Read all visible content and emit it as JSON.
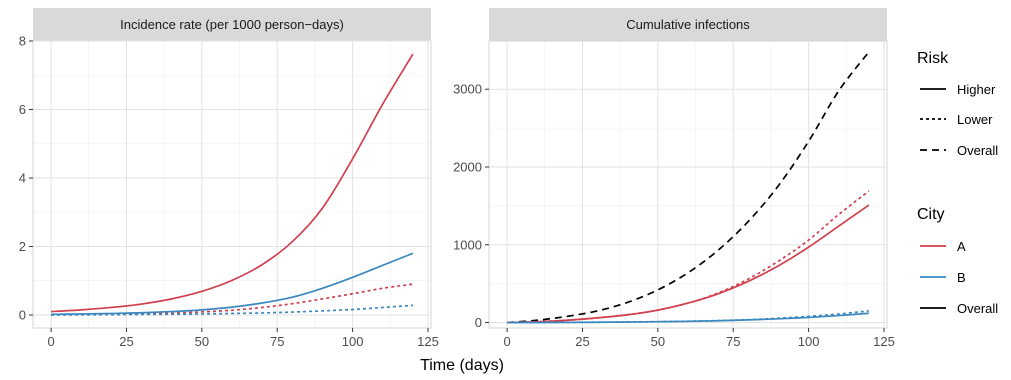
{
  "xlabel": "Time (days)",
  "colors": {
    "A": "#d1404f",
    "B": "#3a88bf",
    "Overall": "#000000"
  },
  "chart_data": [
    {
      "type": "line",
      "title": "Incidence rate (per 1000 person−days)",
      "xlim": [
        -6,
        126
      ],
      "ylim": [
        -0.38,
        8.0
      ],
      "xticks": [
        0,
        25,
        50,
        75,
        100,
        125
      ],
      "yticks": [
        0,
        2,
        4,
        6,
        8
      ],
      "x": [
        0,
        10,
        20,
        30,
        40,
        50,
        60,
        70,
        80,
        90,
        100,
        110,
        120
      ],
      "series": [
        {
          "name": "A – Higher",
          "city": "A",
          "risk": "Higher",
          "values": [
            0.1,
            0.15,
            0.22,
            0.32,
            0.47,
            0.69,
            1.01,
            1.47,
            2.14,
            3.12,
            4.56,
            6.16,
            7.62
          ]
        },
        {
          "name": "A – Lower",
          "city": "A",
          "risk": "Lower",
          "values": [
            0.01,
            0.015,
            0.02,
            0.035,
            0.055,
            0.09,
            0.14,
            0.22,
            0.33,
            0.47,
            0.62,
            0.78,
            0.9
          ]
        },
        {
          "name": "B – Higher",
          "city": "B",
          "risk": "Higher",
          "values": [
            0.02,
            0.03,
            0.045,
            0.065,
            0.1,
            0.15,
            0.23,
            0.35,
            0.52,
            0.78,
            1.1,
            1.45,
            1.8
          ]
        },
        {
          "name": "B – Lower",
          "city": "B",
          "risk": "Lower",
          "values": [
            0.0,
            0.005,
            0.01,
            0.015,
            0.02,
            0.03,
            0.045,
            0.06,
            0.085,
            0.12,
            0.16,
            0.22,
            0.28
          ]
        }
      ]
    },
    {
      "type": "line",
      "title": "Cumulative infections",
      "xlim": [
        -6,
        126
      ],
      "ylim": [
        -70,
        3620
      ],
      "xticks": [
        0,
        25,
        50,
        75,
        100,
        125
      ],
      "yticks": [
        0,
        1000,
        2000,
        3000
      ],
      "x": [
        0,
        10,
        20,
        30,
        40,
        50,
        60,
        70,
        80,
        90,
        100,
        110,
        120
      ],
      "series": [
        {
          "name": "Overall – Overall",
          "city": "Overall",
          "risk": "Overall",
          "values": [
            0,
            30,
            80,
            150,
            260,
            420,
            640,
            930,
            1300,
            1760,
            2330,
            2980,
            3480
          ]
        },
        {
          "name": "A – Lower",
          "city": "A",
          "risk": "Lower",
          "values": [
            0,
            10,
            30,
            60,
            100,
            160,
            250,
            380,
            560,
            790,
            1060,
            1390,
            1690
          ]
        },
        {
          "name": "A – Higher",
          "city": "A",
          "risk": "Higher",
          "values": [
            0,
            10,
            30,
            60,
            100,
            160,
            250,
            370,
            530,
            730,
            970,
            1240,
            1510
          ]
        },
        {
          "name": "B – Lower",
          "city": "B",
          "risk": "Lower",
          "values": [
            0,
            1,
            2,
            4,
            7,
            11,
            17,
            25,
            37,
            55,
            80,
            110,
            150
          ]
        },
        {
          "name": "B – Higher",
          "city": "B",
          "risk": "Higher",
          "values": [
            0,
            1,
            2,
            4,
            7,
            11,
            16,
            23,
            34,
            48,
            66,
            90,
            120
          ]
        }
      ]
    }
  ],
  "legend": {
    "placement": "right",
    "risk": {
      "title": "Risk",
      "items": [
        "Higher",
        "Lower",
        "Overall"
      ]
    },
    "city": {
      "title": "City",
      "items": [
        "A",
        "B",
        "Overall"
      ]
    }
  }
}
